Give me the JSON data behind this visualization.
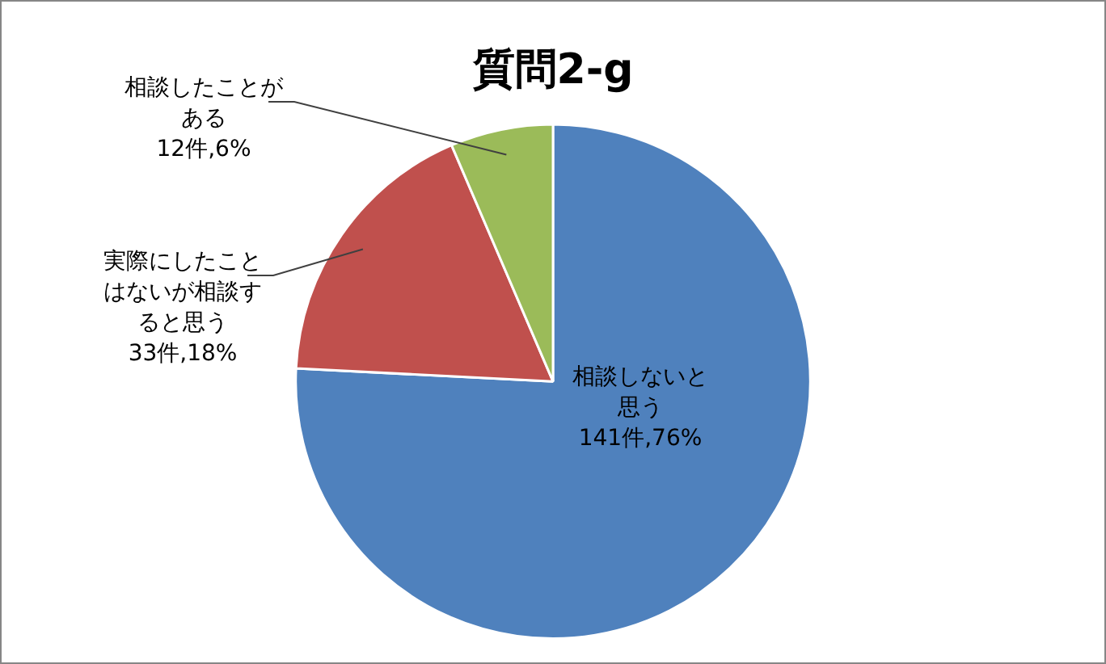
{
  "chart_data": {
    "type": "pie",
    "title": "質問2-g",
    "categories": [
      "相談しないと思う",
      "実際にしたことはないが相談すると思う",
      "相談したことがある"
    ],
    "values": [
      141,
      33,
      12
    ],
    "colors": [
      "#4f81bd",
      "#c0504d",
      "#9bbb59"
    ],
    "value_labels": [
      "141件,76%",
      "33件,18%",
      "12件,6%"
    ],
    "legend": false
  }
}
